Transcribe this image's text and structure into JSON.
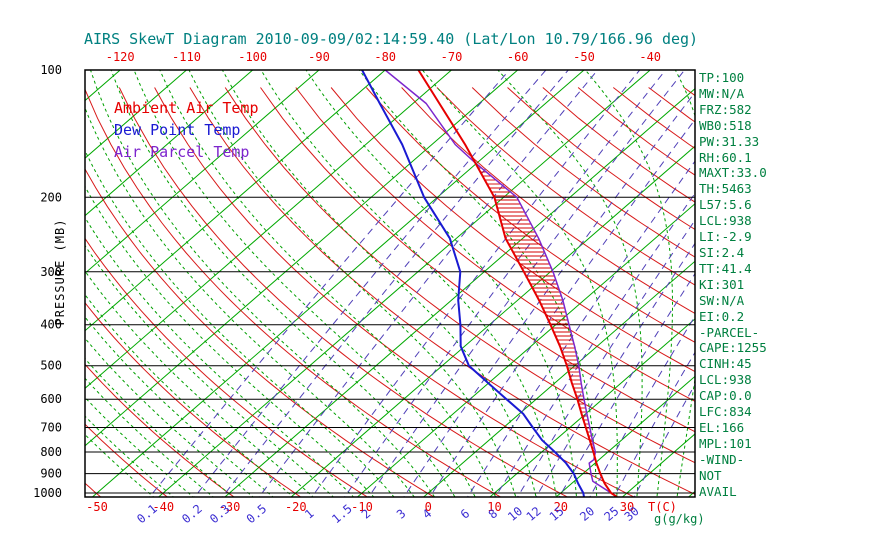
{
  "title": "AIRS SkewT Diagram 2010-09-09/02:14:59.40 (Lat/Lon 10.79/166.96 deg)",
  "legend": {
    "items": [
      {
        "label": "Ambient Air Temp",
        "color": "#e60000"
      },
      {
        "label": "Dew Point Temp",
        "color": "#1a1ad2"
      },
      {
        "label": "Air Parcel Temp",
        "color": "#7d26cd"
      }
    ]
  },
  "axes": {
    "pressure_axis_label": "PRESSURE (MB)",
    "pressure_ticks_mb": [
      100,
      200,
      300,
      400,
      500,
      600,
      700,
      800,
      900,
      1000
    ],
    "top_temperature_ticks_c": [
      -120,
      -110,
      -100,
      -90,
      -80,
      -70,
      -60,
      -50,
      -40
    ],
    "bottom_temperature_ticks_c": [
      -50,
      -40,
      -30,
      -20,
      -10,
      0,
      10,
      20,
      30
    ],
    "temperature_unit_label": "T(C)",
    "mixing_ratio_unit_label": "g(g/kg)"
  },
  "stats_panel": {
    "lines": [
      "TP:100",
      "MW:N/A",
      "FRZ:582",
      "WB0:518",
      "PW:31.33",
      "RH:60.1",
      "MAXT:33.0",
      "TH:5463",
      "L57:5.6",
      "LCL:938",
      "LI:-2.9",
      "SI:2.4",
      "TT:41.4",
      "KI:301",
      "SW:N/A",
      "EI:0.2",
      "-PARCEL-",
      "CAPE:1255",
      "CINH:45",
      "LCL:938",
      "CAP:0.0",
      "LFC:834",
      "EL:166",
      "MPL:101",
      "-WIND-",
      "NOT",
      "AVAIL"
    ]
  },
  "colors": {
    "title_text": "#008080",
    "stats_text": "#008040",
    "isotherm": "#00a800",
    "moist_adiabat": "#00a000",
    "dry_adiabat": "#d40000",
    "mixing_ratio": "#5040b8",
    "isobar": "#000000",
    "frame": "#000000",
    "top_tick_text": "#e60000",
    "mixing_label_text": "#3c2ed2",
    "pressure_text": "#000000",
    "hatch": "#d40000"
  },
  "chart_data": {
    "type": "line",
    "diagram": "skew-t-log-p",
    "title": "AIRS SkewT Diagram 2010-09-09/02:14:59.40 (Lat/Lon 10.79/166.96 deg)",
    "pressure_axis_mb": {
      "top": 100,
      "bottom": 1022,
      "scale": "log",
      "label": "PRESSURE (MB)"
    },
    "temperature_axis_c": {
      "bottom_range": [
        -50,
        30
      ],
      "top_range": [
        -120,
        -40
      ],
      "unit": "C"
    },
    "grid": {
      "isobars_on": true,
      "skewed_isotherms": true
    },
    "isotherms_c": [
      -120,
      -110,
      -100,
      -90,
      -80,
      -70,
      -60,
      -50,
      -40,
      -30,
      -20,
      -10,
      0,
      10,
      20,
      30,
      40
    ],
    "dry_adiabats_theta_k": [
      223,
      233,
      243,
      253,
      263,
      273,
      283,
      293,
      303,
      313,
      323,
      333,
      343,
      353,
      363,
      373,
      383,
      393,
      403,
      413,
      423,
      433,
      443,
      453,
      463
    ],
    "moist_adiabats_thetaw_c": [
      -39,
      -36,
      -33,
      -30,
      -27,
      -24,
      -21,
      -18,
      -15,
      -12,
      -9,
      -6,
      -3,
      0,
      3,
      6,
      9,
      12,
      15,
      18,
      21,
      24,
      27,
      30,
      33,
      36,
      39,
      42
    ],
    "mixing_ratio_lines_g_kg": [
      0.1,
      0.2,
      0.3,
      0.5,
      1,
      1.5,
      2,
      3,
      4,
      6,
      8,
      10,
      12,
      15,
      20,
      25,
      30
    ],
    "series": [
      {
        "name": "Ambient Air Temp",
        "color": "#e60000",
        "points_mb_c": [
          [
            1022,
            29.2
          ],
          [
            1000,
            27.6
          ],
          [
            950,
            25.0
          ],
          [
            900,
            22.6
          ],
          [
            850,
            20.2
          ],
          [
            800,
            17.8
          ],
          [
            750,
            15.2
          ],
          [
            700,
            12.4
          ],
          [
            650,
            9.4
          ],
          [
            600,
            6.2
          ],
          [
            550,
            2.6
          ],
          [
            500,
            -1.2
          ],
          [
            450,
            -5.6
          ],
          [
            400,
            -10.8
          ],
          [
            350,
            -16.8
          ],
          [
            300,
            -24.0
          ],
          [
            250,
            -32.6
          ],
          [
            200,
            -41.4
          ],
          [
            150,
            -55.0
          ],
          [
            120,
            -66.0
          ],
          [
            100,
            -75.0
          ]
        ]
      },
      {
        "name": "Dew Point Temp",
        "color": "#1a1ad2",
        "points_mb_c": [
          [
            1022,
            24.2
          ],
          [
            1000,
            23.4
          ],
          [
            950,
            21.0
          ],
          [
            900,
            18.6
          ],
          [
            850,
            15.6
          ],
          [
            800,
            12.0
          ],
          [
            750,
            8.0
          ],
          [
            700,
            4.4
          ],
          [
            650,
            0.6
          ],
          [
            600,
            -4.5
          ],
          [
            550,
            -10.0
          ],
          [
            500,
            -16.0
          ],
          [
            450,
            -20.6
          ],
          [
            400,
            -24.4
          ],
          [
            350,
            -29.0
          ],
          [
            300,
            -33.6
          ],
          [
            250,
            -41.0
          ],
          [
            200,
            -52.0
          ],
          [
            150,
            -64.5
          ],
          [
            120,
            -75.0
          ],
          [
            100,
            -83.5
          ]
        ]
      },
      {
        "name": "Air Parcel Temp",
        "color": "#7d26cd",
        "points_mb_c": [
          [
            1022,
            29.2
          ],
          [
            1000,
            27.6
          ],
          [
            938,
            22.8
          ],
          [
            900,
            21.2
          ],
          [
            850,
            19.1
          ],
          [
            834,
            19.2
          ],
          [
            800,
            18.1
          ],
          [
            750,
            15.6
          ],
          [
            700,
            13.0
          ],
          [
            650,
            10.2
          ],
          [
            600,
            7.2
          ],
          [
            550,
            4.0
          ],
          [
            500,
            0.6
          ],
          [
            450,
            -3.4
          ],
          [
            400,
            -8.0
          ],
          [
            350,
            -13.2
          ],
          [
            300,
            -19.6
          ],
          [
            250,
            -27.6
          ],
          [
            200,
            -38.0
          ],
          [
            166,
            -50.2
          ],
          [
            150,
            -56.5
          ],
          [
            120,
            -68.0
          ],
          [
            100,
            -80.0
          ]
        ]
      }
    ],
    "cape_hatch_region": {
      "from_mb": 834,
      "to_mb": 166,
      "between": [
        "Ambient Air Temp",
        "Air Parcel Temp"
      ]
    }
  }
}
